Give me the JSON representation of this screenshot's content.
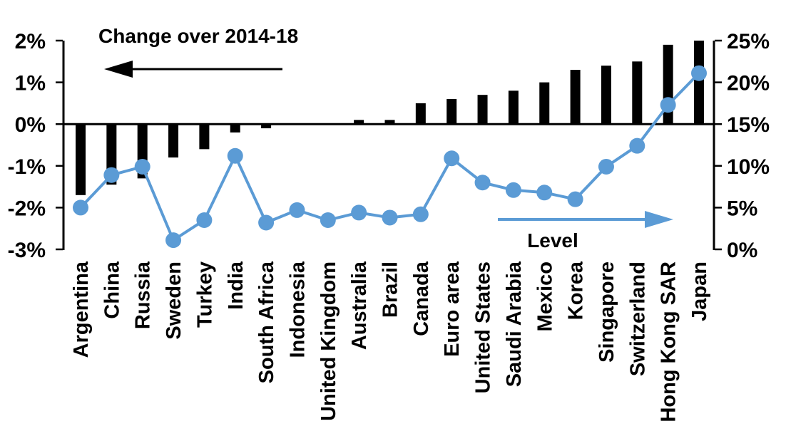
{
  "chart": {
    "title": "Change over 2014-18",
    "line_series_label": "Level"
  },
  "chart_data": {
    "type": "combo-bar-line",
    "background": "#ffffff",
    "grid": false,
    "categories": [
      "Argentina",
      "China",
      "Russia",
      "Sweden",
      "Turkey",
      "India",
      "South Africa",
      "Indonesia",
      "United Kingdom",
      "Australia",
      "Brazil",
      "Canada",
      "Euro area",
      "United States",
      "Saudi Arabia",
      "Mexico",
      "Korea",
      "Singapore",
      "Switzerland",
      "Hong Kong SAR",
      "Japan"
    ],
    "series": [
      {
        "name": "Change over 2014-18",
        "type": "bar",
        "axis": "left",
        "color": "#000000",
        "values": [
          -1.7,
          -1.45,
          -1.3,
          -0.8,
          -0.6,
          -0.2,
          -0.1,
          0.0,
          0.0,
          0.1,
          0.1,
          0.5,
          0.6,
          0.7,
          0.8,
          1.0,
          1.3,
          1.4,
          1.5,
          1.9,
          2.0
        ]
      },
      {
        "name": "Level",
        "type": "line",
        "axis": "right",
        "color": "#5b9bd5",
        "values": [
          5.0,
          8.9,
          9.9,
          1.1,
          3.5,
          11.2,
          3.2,
          4.7,
          3.5,
          4.4,
          3.8,
          4.2,
          10.9,
          8.0,
          7.1,
          6.8,
          6.0,
          9.9,
          12.4,
          17.3,
          21.1
        ]
      }
    ],
    "left_axis": {
      "range": [
        -3,
        2
      ],
      "tick_values": [
        2,
        1,
        0,
        -1,
        -2,
        -3
      ],
      "tick_labels": [
        "2%",
        "1%",
        "0%",
        "-1%",
        "-2%",
        "-3%"
      ]
    },
    "right_axis": {
      "range": [
        0,
        25
      ],
      "tick_values": [
        25,
        20,
        15,
        10,
        5,
        0
      ],
      "tick_labels": [
        "25%",
        "20%",
        "15%",
        "10%",
        "5%",
        "0%"
      ]
    },
    "annotations": {
      "bar_series_note": {
        "text": "Change over 2014-18",
        "arrow": "left",
        "color": "#000000"
      },
      "line_series_note": {
        "text": "Level",
        "arrow": "right",
        "color": "#5b9bd5"
      }
    }
  }
}
